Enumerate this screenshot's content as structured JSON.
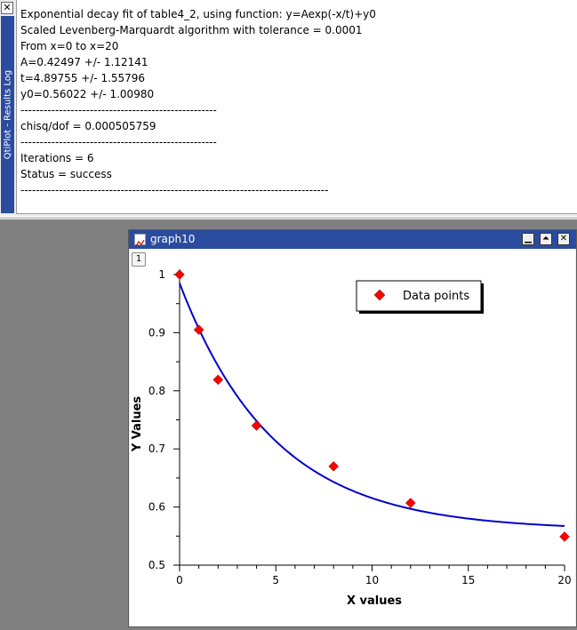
{
  "results_log": {
    "title": "QtiPlot - Results Log",
    "close_glyph": "✕",
    "lines": [
      "Exponential decay fit of table4_2, using function: y=Aexp(-x/t)+y0",
      "Scaled Levenberg-Marquardt algorithm with tolerance = 0.0001",
      "From x=0 to x=20",
      "A=0.42497 +/- 1.12141",
      "t=4.89755 +/- 1.55796",
      "y0=0.56022 +/- 1.00980",
      "---------------------------------------------------",
      "chisq/dof = 0.000505759",
      "---------------------------------------------------",
      "Iterations = 6",
      "Status = success",
      "--------------------------------------------------------------------------------"
    ]
  },
  "graph_window": {
    "title": "graph10",
    "icon": "graph-icon",
    "layer_label": "1",
    "buttons": {
      "minimize": "▁",
      "maximize": "⏶",
      "close": "✕"
    }
  },
  "chart_data": {
    "type": "scatter",
    "xlabel": "X values",
    "ylabel": "Y Values",
    "xlim": [
      0,
      20
    ],
    "ylim": [
      0.5,
      1.0
    ],
    "xticks": [
      0,
      5,
      10,
      15,
      20
    ],
    "yticks": [
      0.5,
      0.6,
      0.7,
      0.8,
      0.9,
      1
    ],
    "legend": {
      "position": "top-right",
      "label": "Data points"
    },
    "series": [
      {
        "name": "Data points",
        "marker": "diamond",
        "color": "#ff0000",
        "x": [
          0,
          1,
          2,
          4,
          8,
          12,
          20
        ],
        "y": [
          1.0,
          0.905,
          0.819,
          0.74,
          0.67,
          0.607,
          0.549
        ]
      }
    ],
    "fit": {
      "function": "y=Aexp(-x/t)+y0",
      "A": 0.42497,
      "t": 4.89755,
      "y0": 0.56022,
      "color": "#0000cc"
    }
  }
}
